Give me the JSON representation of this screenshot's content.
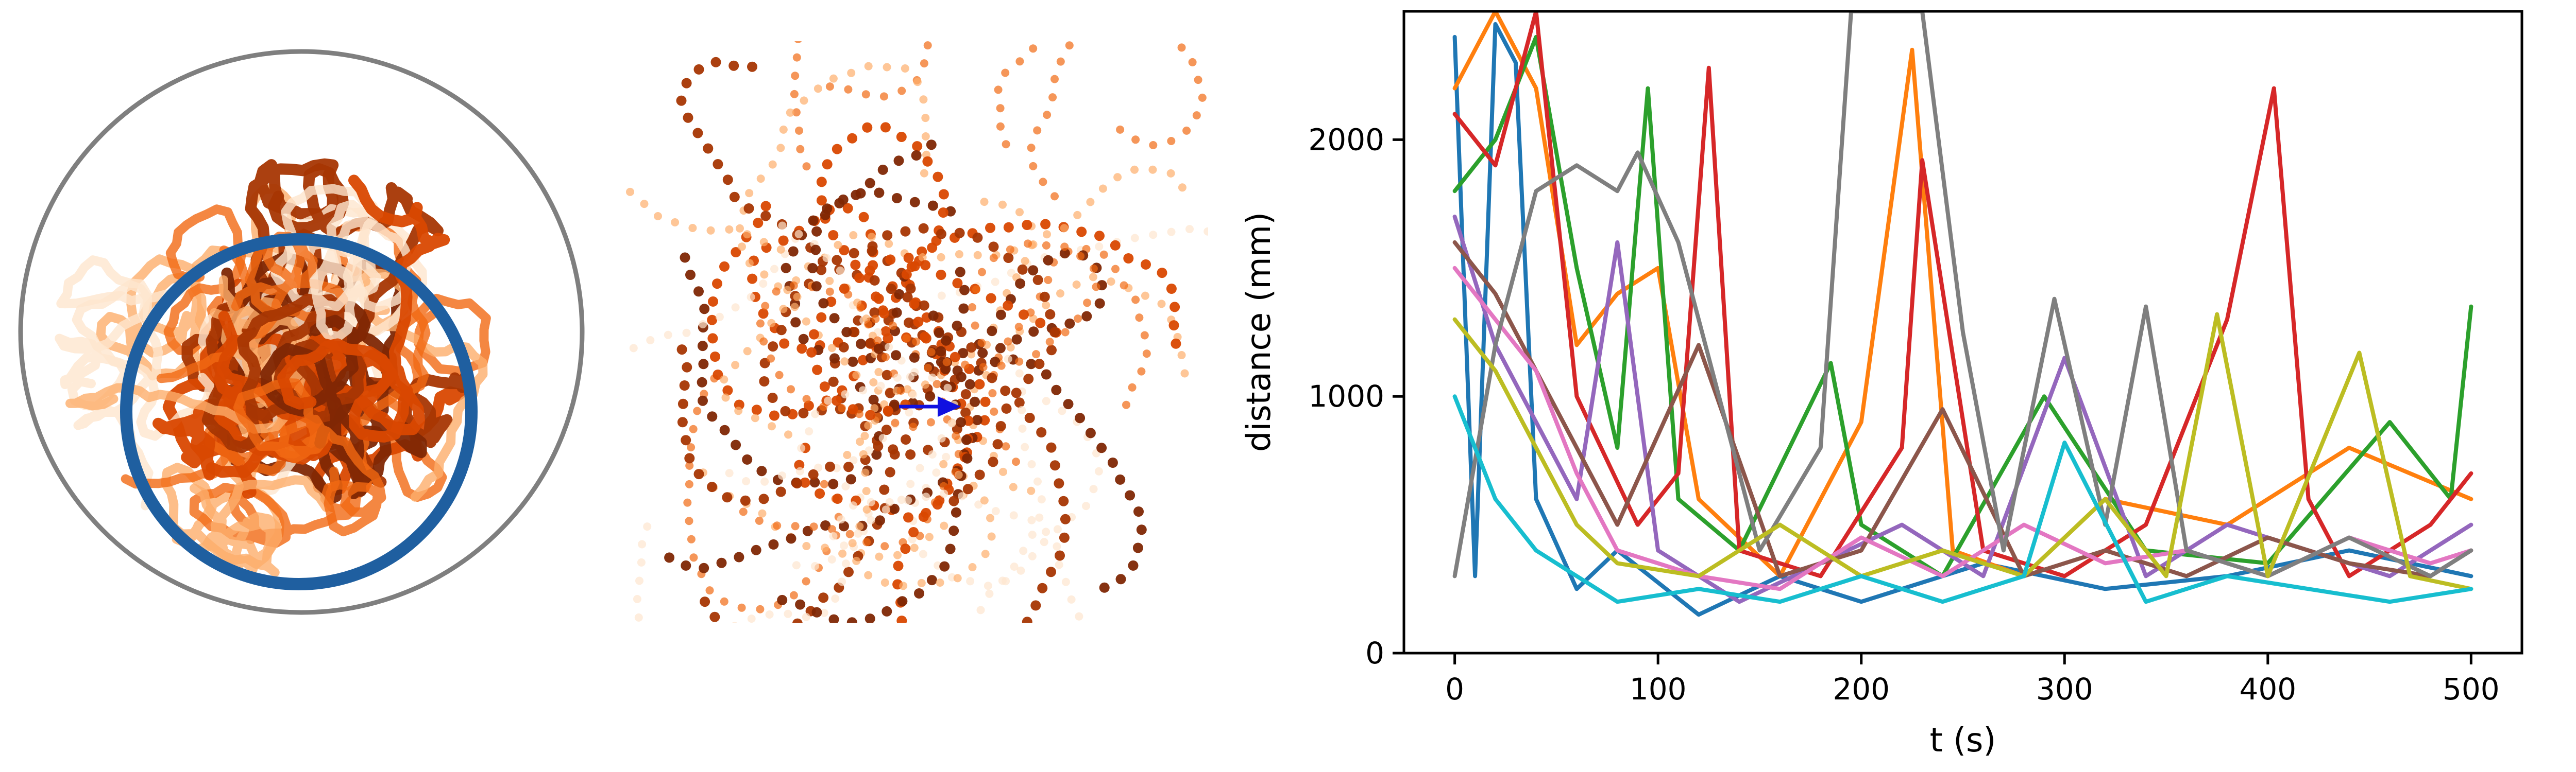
{
  "chart_data": [
    {
      "type": "scatter",
      "panel": "top-down trajectories (circular arena)",
      "arena": {
        "shape": "circle",
        "color": "#7f7f7f"
      },
      "reference_ring": {
        "shape": "circle",
        "color": "#1f5fa0"
      },
      "colormap": [
        "#fee6ce",
        "#fdae6b",
        "#f16913",
        "#d94801",
        "#a63603",
        "#7f2704"
      ]
    },
    {
      "type": "scatter",
      "panel": "zoomed trajectories (dotted)",
      "colormap": [
        "#fee6ce",
        "#fdae6b",
        "#f16913",
        "#d94801",
        "#a63603",
        "#7f2704"
      ],
      "arrow": {
        "color": "#1010e0",
        "direction": "right"
      }
    },
    {
      "type": "line",
      "xlabel": "t (s)",
      "ylabel": "distance (mm)",
      "xlim": [
        -25,
        525
      ],
      "ylim": [
        0,
        2500
      ],
      "xticks": [
        0,
        100,
        200,
        300,
        400,
        500
      ],
      "yticks": [
        0,
        1000,
        2000
      ],
      "grid": false,
      "series": [
        {
          "color": "#1f77b4",
          "x": [
            0,
            10,
            20,
            30,
            40,
            60,
            80,
            120,
            160,
            200,
            260,
            320,
            380,
            440,
            500
          ],
          "y": [
            2400,
            300,
            2450,
            2300,
            600,
            250,
            400,
            150,
            300,
            200,
            350,
            250,
            300,
            400,
            300
          ]
        },
        {
          "color": "#ff7f0e",
          "x": [
            0,
            20,
            40,
            60,
            80,
            100,
            120,
            160,
            200,
            225,
            245,
            280,
            320,
            380,
            440,
            500
          ],
          "y": [
            2200,
            2500,
            2200,
            1200,
            1400,
            1500,
            600,
            300,
            900,
            2350,
            400,
            300,
            600,
            500,
            800,
            600
          ]
        },
        {
          "color": "#2ca02c",
          "x": [
            0,
            20,
            40,
            60,
            80,
            95,
            110,
            140,
            185,
            200,
            240,
            290,
            340,
            400,
            460,
            490,
            500
          ],
          "y": [
            1800,
            2000,
            2400,
            1500,
            800,
            2200,
            600,
            400,
            1130,
            500,
            300,
            1000,
            400,
            350,
            900,
            600,
            1350
          ]
        },
        {
          "color": "#d62728",
          "x": [
            0,
            20,
            40,
            60,
            90,
            110,
            125,
            140,
            180,
            220,
            230,
            260,
            300,
            340,
            380,
            403,
            420,
            440,
            480,
            500
          ],
          "y": [
            2100,
            1900,
            2500,
            1000,
            500,
            700,
            2280,
            400,
            300,
            800,
            1920,
            400,
            300,
            500,
            1300,
            2200,
            600,
            300,
            500,
            700
          ]
        },
        {
          "color": "#9467bd",
          "x": [
            0,
            20,
            40,
            60,
            80,
            100,
            140,
            180,
            220,
            260,
            300,
            340,
            380,
            420,
            460,
            500
          ],
          "y": [
            1700,
            1200,
            900,
            600,
            1600,
            400,
            200,
            350,
            500,
            300,
            1150,
            300,
            500,
            400,
            300,
            500
          ]
        },
        {
          "color": "#8c564b",
          "x": [
            0,
            20,
            40,
            60,
            80,
            120,
            160,
            200,
            240,
            280,
            320,
            360,
            400,
            440,
            480,
            500
          ],
          "y": [
            1600,
            1400,
            1100,
            800,
            500,
            1200,
            300,
            400,
            950,
            300,
            400,
            300,
            450,
            350,
            300,
            400
          ]
        },
        {
          "color": "#e377c2",
          "x": [
            0,
            20,
            40,
            60,
            80,
            120,
            160,
            200,
            240,
            280,
            320,
            360,
            400,
            440,
            480,
            500
          ],
          "y": [
            1500,
            1300,
            1100,
            700,
            400,
            300,
            250,
            450,
            300,
            500,
            350,
            400,
            300,
            450,
            350,
            400
          ]
        },
        {
          "color": "#7f7f7f",
          "x": [
            0,
            20,
            40,
            60,
            80,
            90,
            110,
            150,
            180,
            195,
            230,
            250,
            270,
            295,
            320,
            340,
            360,
            400,
            440,
            480,
            500
          ],
          "y": [
            300,
            1200,
            1800,
            1900,
            1800,
            1950,
            1600,
            400,
            800,
            2500,
            2500,
            1250,
            400,
            1380,
            500,
            1350,
            400,
            300,
            450,
            300,
            400
          ]
        },
        {
          "color": "#bcbd22",
          "x": [
            0,
            20,
            40,
            60,
            80,
            120,
            160,
            200,
            240,
            280,
            320,
            350,
            375,
            400,
            445,
            470,
            500
          ],
          "y": [
            1300,
            1100,
            800,
            500,
            350,
            300,
            500,
            300,
            400,
            300,
            600,
            300,
            1320,
            300,
            1170,
            300,
            250
          ]
        },
        {
          "color": "#17becf",
          "x": [
            0,
            20,
            40,
            60,
            80,
            120,
            160,
            200,
            240,
            280,
            300,
            340,
            380,
            420,
            460,
            500
          ],
          "y": [
            1000,
            600,
            400,
            300,
            200,
            250,
            200,
            300,
            200,
            300,
            820,
            200,
            300,
            250,
            200,
            250
          ]
        }
      ]
    }
  ]
}
